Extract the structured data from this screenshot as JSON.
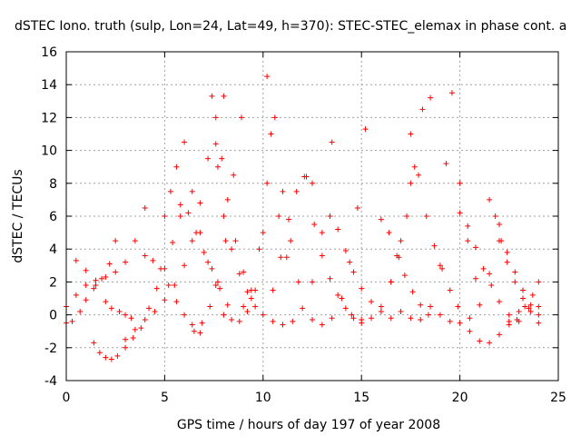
{
  "chart_data": {
    "type": "scatter",
    "title": "dSTEC Iono. truth (sulp, Lon=24, Lat=49, h=370): STEC-STEC_elemax in phase cont. a",
    "xlabel": "GPS time / hours of day 197 of year 2008",
    "ylabel": "dSTEC  / TECUs",
    "xlim": [
      0,
      25
    ],
    "ylim": [
      -4,
      16
    ],
    "xticks": [
      0,
      5,
      10,
      15,
      20,
      25
    ],
    "yticks": [
      -4,
      -2,
      0,
      2,
      4,
      6,
      8,
      10,
      12,
      14,
      16
    ],
    "grid": true,
    "marker": "+",
    "color": "#ff0000",
    "series": [
      {
        "x": [
          0.0,
          0.5,
          1.0,
          1.5,
          2.0,
          2.5,
          3.0,
          3.5,
          4.0
        ],
        "y": [
          0.5,
          1.2,
          1.8,
          2.1,
          2.3,
          2.6,
          3.2,
          4.5,
          6.5
        ]
      },
      {
        "x": [
          0.0,
          0.3,
          0.7,
          1.0,
          1.4,
          1.8,
          2.2,
          2.5
        ],
        "y": [
          -0.5,
          -0.4,
          0.2,
          0.9,
          1.6,
          2.2,
          3.1,
          4.5
        ]
      },
      {
        "x": [
          0.5,
          1.0,
          1.5,
          2.0,
          2.3,
          2.7,
          3.0,
          3.3
        ],
        "y": [
          3.3,
          2.7,
          1.8,
          0.8,
          0.4,
          0.2,
          0.0,
          -0.2
        ]
      },
      {
        "x": [
          1.4,
          1.7,
          2.0,
          2.3,
          2.6,
          3.0,
          3.4,
          3.8,
          4.2,
          4.6,
          5.0,
          5.4,
          5.8
        ],
        "y": [
          -1.7,
          -2.3,
          -2.6,
          -2.7,
          -2.5,
          -2.0,
          -1.4,
          -0.8,
          0.4,
          1.6,
          2.8,
          4.4,
          6.0
        ]
      },
      {
        "x": [
          3.0,
          3.5,
          4.0,
          4.5,
          5.0,
          5.5,
          6.0,
          6.4,
          6.8,
          7.2,
          7.6,
          8.0
        ],
        "y": [
          -1.5,
          -0.9,
          -0.3,
          0.2,
          0.9,
          1.8,
          3.0,
          4.5,
          6.8,
          9.5,
          12.0,
          13.3
        ]
      },
      {
        "x": [
          4.0,
          4.4,
          4.8,
          5.2,
          5.6,
          6.0,
          6.4,
          6.8
        ],
        "y": [
          3.6,
          3.3,
          2.8,
          1.8,
          0.8,
          0.0,
          -0.6,
          -1.1
        ]
      },
      {
        "x": [
          5.0,
          5.3,
          5.6,
          6.0,
          6.4,
          6.8,
          7.2,
          7.6
        ],
        "y": [
          6.0,
          7.5,
          9.0,
          10.5,
          7.5,
          5.0,
          3.2,
          1.8
        ]
      },
      {
        "x": [
          5.8,
          6.2,
          6.6,
          7.0,
          7.4,
          7.8,
          8.2
        ],
        "y": [
          6.7,
          6.2,
          5.0,
          3.8,
          2.8,
          1.6,
          0.6
        ]
      },
      {
        "x": [
          6.5,
          6.9,
          7.3,
          7.7,
          8.1,
          8.5,
          8.9
        ],
        "y": [
          -1.0,
          -0.5,
          0.5,
          2.0,
          4.5,
          8.5,
          12.0
        ]
      },
      {
        "x": [
          7.4,
          7.7,
          8.0,
          8.4,
          8.8,
          9.2,
          9.6
        ],
        "y": [
          13.3,
          9.0,
          6.0,
          4.0,
          2.5,
          1.4,
          0.5
        ]
      },
      {
        "x": [
          7.6,
          7.9,
          8.2,
          8.6,
          9.0,
          9.4
        ],
        "y": [
          10.4,
          9.5,
          7.0,
          4.5,
          2.6,
          1.0
        ]
      },
      {
        "x": [
          8.0,
          8.4,
          8.8,
          9.2,
          9.6,
          10.0,
          10.2,
          10.4,
          10.8,
          11.2
        ],
        "y": [
          0.0,
          -0.3,
          -0.4,
          0.2,
          1.5,
          5.0,
          14.5,
          11.0,
          6.0,
          3.5
        ]
      },
      {
        "x": [
          9.0,
          9.4,
          9.8,
          10.2,
          10.6,
          11.0,
          11.4,
          11.8
        ],
        "y": [
          0.5,
          1.5,
          4.0,
          8.0,
          12.0,
          7.5,
          4.5,
          2.0
        ]
      },
      {
        "x": [
          10.5,
          10.9,
          11.3,
          11.7,
          12.1,
          12.5
        ],
        "y": [
          1.5,
          3.5,
          5.8,
          7.5,
          8.4,
          8.0
        ]
      },
      {
        "x": [
          10.0,
          10.5,
          11.0,
          11.5,
          12.0,
          12.5,
          13.0,
          13.5
        ],
        "y": [
          0.0,
          -0.4,
          -0.6,
          -0.4,
          0.4,
          2.0,
          5.0,
          10.5
        ]
      },
      {
        "x": [
          12.2,
          12.6,
          13.0,
          13.4,
          13.8,
          14.2,
          14.6,
          15.0
        ],
        "y": [
          8.4,
          5.5,
          3.6,
          2.2,
          1.2,
          0.4,
          -0.2,
          -0.5
        ]
      },
      {
        "x": [
          12.5,
          13.0,
          13.5,
          14.0,
          14.4,
          14.8,
          15.2
        ],
        "y": [
          -0.3,
          -0.6,
          -0.2,
          1.0,
          3.2,
          6.5,
          11.3
        ]
      },
      {
        "x": [
          13.4,
          13.8,
          14.2,
          14.6,
          15.0,
          15.5,
          16.0,
          16.5
        ],
        "y": [
          6.0,
          5.2,
          3.9,
          2.6,
          1.6,
          0.8,
          0.2,
          -0.2
        ]
      },
      {
        "x": [
          14.5,
          15.0,
          15.5,
          16.0,
          16.5,
          17.0,
          17.5
        ],
        "y": [
          0.0,
          -0.3,
          -0.2,
          0.5,
          2.0,
          4.5,
          8.0
        ]
      },
      {
        "x": [
          16.0,
          16.4,
          16.8,
          17.2,
          17.6,
          18.0,
          18.4
        ],
        "y": [
          5.8,
          5.0,
          3.6,
          2.4,
          1.4,
          0.6,
          0.0
        ]
      },
      {
        "x": [
          16.5,
          16.9,
          17.3,
          17.7,
          18.1,
          18.5
        ],
        "y": [
          2.0,
          3.5,
          6.0,
          9.0,
          12.5,
          13.2
        ]
      },
      {
        "x": [
          17.5,
          17.9,
          18.3,
          18.7,
          19.1,
          19.5,
          19.9
        ],
        "y": [
          11.0,
          8.5,
          6.0,
          4.2,
          2.8,
          1.5,
          0.5
        ]
      },
      {
        "x": [
          17.0,
          17.5,
          18.0,
          18.5,
          19.0,
          19.3,
          19.6,
          20.0,
          20.4,
          20.8
        ],
        "y": [
          0.2,
          -0.2,
          -0.3,
          0.5,
          3.0,
          9.2,
          13.5,
          8.0,
          4.5,
          2.2
        ]
      },
      {
        "x": [
          19.0,
          19.5,
          20.0,
          20.5,
          21.0,
          21.5,
          22.0
        ],
        "y": [
          0.0,
          -0.4,
          -0.5,
          -0.2,
          0.6,
          2.5,
          5.5
        ]
      },
      {
        "x": [
          20.0,
          20.4,
          20.8,
          21.2,
          21.6,
          22.0,
          22.5,
          23.0
        ],
        "y": [
          6.2,
          5.4,
          4.1,
          2.8,
          1.8,
          0.8,
          0.0,
          -0.4
        ]
      },
      {
        "x": [
          20.5,
          21.0,
          21.5,
          22.0,
          22.5,
          23.0,
          23.5,
          24.0
        ],
        "y": [
          -1.0,
          -1.6,
          -1.7,
          -1.2,
          -0.4,
          0.2,
          0.4,
          0.5
        ]
      },
      {
        "x": [
          21.5,
          21.8,
          22.1,
          22.4,
          22.8,
          23.2,
          23.6,
          24.0
        ],
        "y": [
          7.0,
          6.0,
          4.5,
          3.2,
          2.0,
          1.0,
          0.2,
          -0.5
        ]
      },
      {
        "x": [
          22.0,
          22.4,
          22.8,
          23.2,
          23.6,
          24.0
        ],
        "y": [
          4.5,
          3.8,
          2.6,
          1.5,
          0.6,
          0.0
        ]
      },
      {
        "x": [
          22.5,
          22.9,
          23.3,
          23.7,
          24.0
        ],
        "y": [
          -0.6,
          -0.3,
          0.5,
          1.2,
          2.0
        ]
      }
    ]
  }
}
